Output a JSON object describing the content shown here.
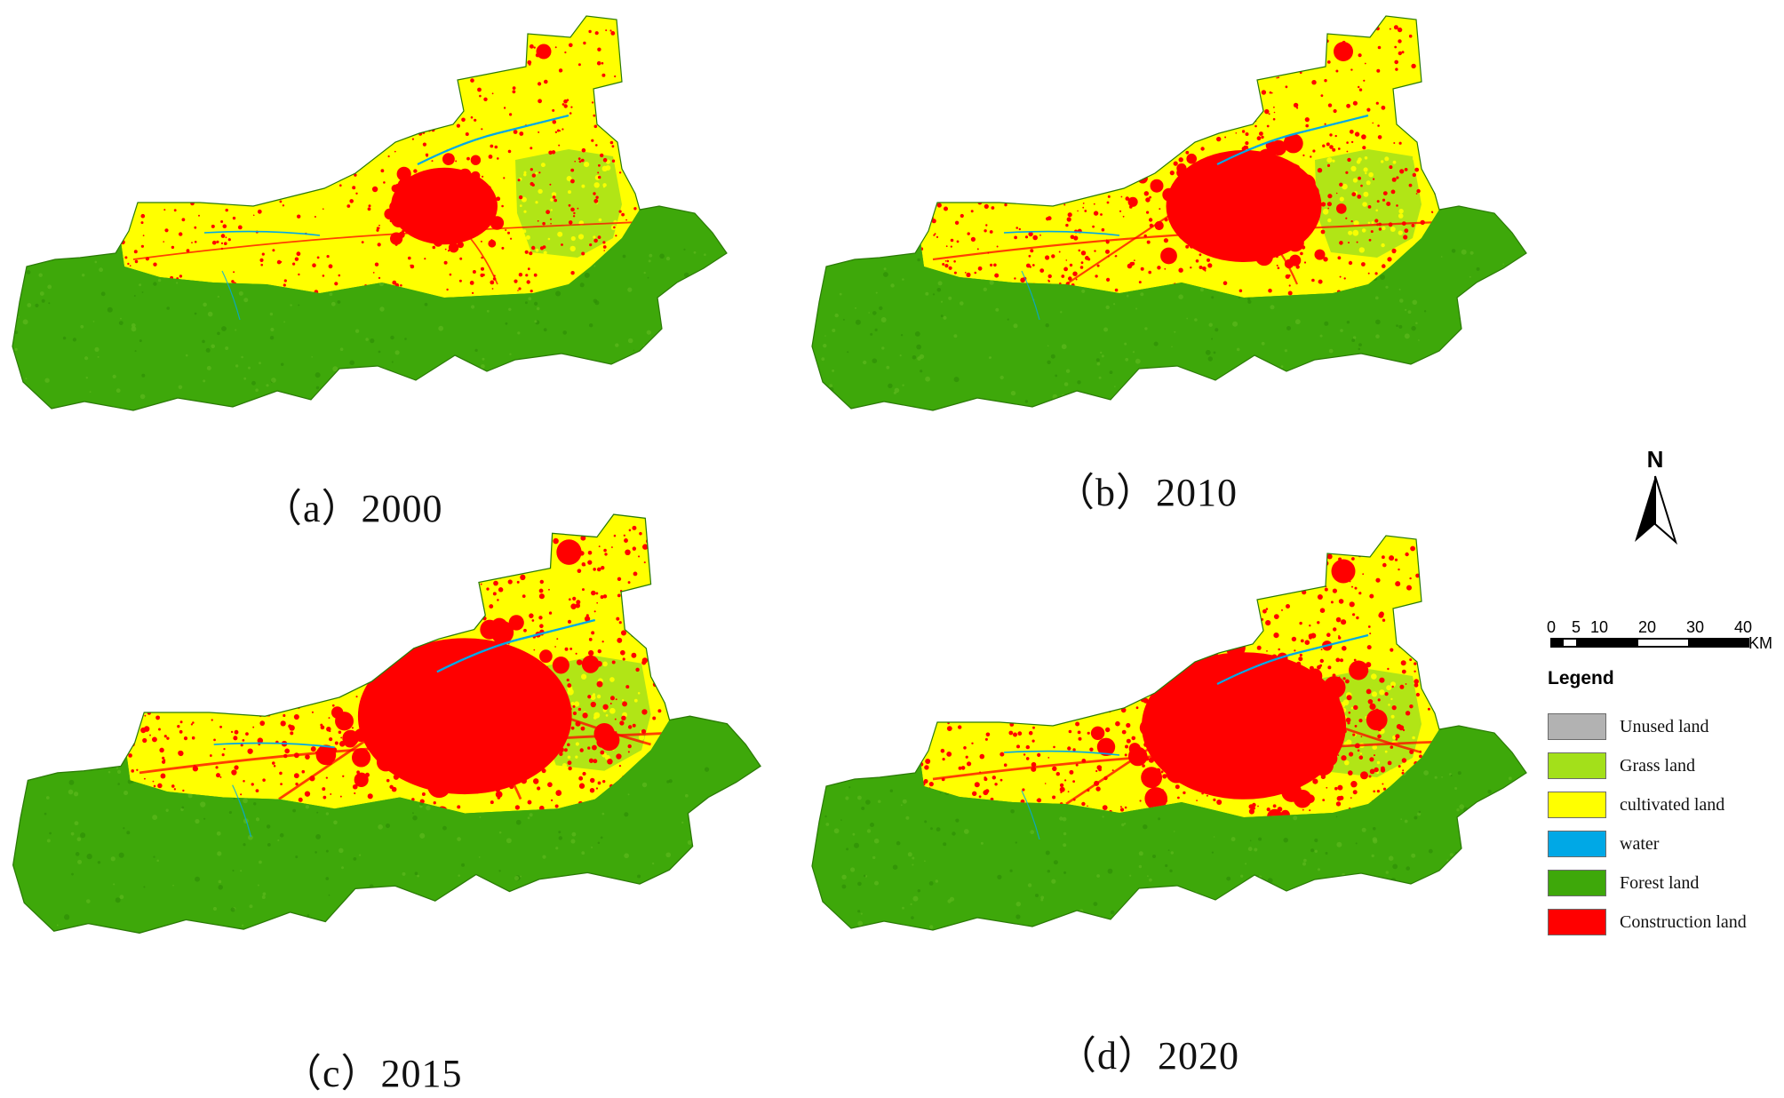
{
  "figure": {
    "panels": [
      {
        "id": "a",
        "caption": "（a）2000",
        "construction_level": 1
      },
      {
        "id": "b",
        "caption": "（b）2010",
        "construction_level": 2
      },
      {
        "id": "c",
        "caption": "（c）2015",
        "construction_level": 3
      },
      {
        "id": "d",
        "caption": "（d）2020",
        "construction_level": 3
      }
    ],
    "north_label": "N",
    "scale": {
      "ticks": [
        "0",
        "5",
        "10",
        "20",
        "30",
        "40"
      ],
      "unit": "KM"
    },
    "legend": {
      "title": "Legend",
      "items": [
        {
          "label": "Unused land",
          "color": "#b2b2b2"
        },
        {
          "label": "Grass land",
          "color": "#a3e01a"
        },
        {
          "label": "cultivated land",
          "color": "#ffff00"
        },
        {
          "label": "water",
          "color": "#00a8e6"
        },
        {
          "label": "Forest land",
          "color": "#3ea80a"
        },
        {
          "label": "Construction land",
          "color": "#ff0000"
        }
      ]
    }
  }
}
